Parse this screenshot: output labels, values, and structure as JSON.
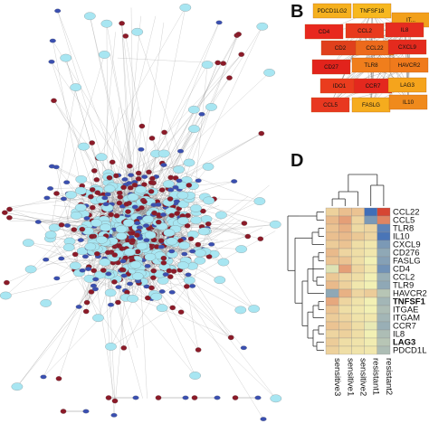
{
  "panels": {
    "B": "B",
    "D": "D"
  },
  "hub_genes": [
    {
      "label": "PDCD1LG2",
      "color": "#f5b01e"
    },
    {
      "label": "TNFSF18",
      "color": "#f7b81f"
    },
    {
      "label": "IT...",
      "color": "#f2a01c"
    },
    {
      "label": "CD4",
      "color": "#e8281e"
    },
    {
      "label": "CCL2",
      "color": "#e83a1e"
    },
    {
      "label": "IL8",
      "color": "#e62c20"
    },
    {
      "label": "CD2",
      "color": "#e0401c"
    },
    {
      "label": "CCL22",
      "color": "#ec6a1c"
    },
    {
      "label": "CXCL9",
      "color": "#e42a1e"
    },
    {
      "label": "CD27",
      "color": "#e2231c"
    },
    {
      "label": "TLR8",
      "color": "#f07e1c"
    },
    {
      "label": "HAVCR2",
      "color": "#f07a1c"
    },
    {
      "label": "IDO1",
      "color": "#ea3c1e"
    },
    {
      "label": "CCR7",
      "color": "#e4281e"
    },
    {
      "label": "LAG3",
      "color": "#f5a41c"
    },
    {
      "label": "CCL5",
      "color": "#e83820"
    },
    {
      "label": "FASLG",
      "color": "#f5ac1e"
    },
    {
      "label": "IL10",
      "color": "#f08a1c"
    }
  ],
  "heatmap": {
    "samples": [
      "sensitive3",
      "sensitive1",
      "sensitive2",
      "resistant1",
      "resistant2"
    ],
    "genes": [
      {
        "name": "CCL22",
        "values": [
          0.35,
          0.55,
          0.5,
          -1.8,
          1.9
        ]
      },
      {
        "name": "CCL5",
        "values": [
          0.6,
          0.9,
          0.3,
          -1.2,
          1.2
        ]
      },
      {
        "name": "TLR8",
        "values": [
          0.5,
          0.7,
          0.25,
          0.3,
          -1.5
        ]
      },
      {
        "name": "IL10",
        "values": [
          0.55,
          0.6,
          0.45,
          0.3,
          -1.7
        ]
      },
      {
        "name": "CXCL9",
        "values": [
          0.4,
          0.5,
          0.2,
          0.1,
          -1.2
        ]
      },
      {
        "name": "CD276",
        "values": [
          0.6,
          0.3,
          0.2,
          0.1,
          -1.0
        ]
      },
      {
        "name": "FASLG",
        "values": [
          0.5,
          0.5,
          0.2,
          0.0,
          -1.1
        ]
      },
      {
        "name": "CD4",
        "values": [
          -0.2,
          0.9,
          0.3,
          0.1,
          -1.3
        ]
      },
      {
        "name": "CCL2",
        "values": [
          0.45,
          0.3,
          0.2,
          0.0,
          -0.9
        ]
      },
      {
        "name": "TLR9",
        "values": [
          0.6,
          0.35,
          0.1,
          0.0,
          -1.0
        ]
      },
      {
        "name": "HAVCR2",
        "values": [
          -1.0,
          0.7,
          0.3,
          0.4,
          -0.6
        ]
      },
      {
        "name": "TNFSF1",
        "values": [
          0.8,
          0.3,
          0.15,
          0.0,
          -0.8
        ]
      },
      {
        "name": "ITGAE",
        "values": [
          0.5,
          0.2,
          0.1,
          0.0,
          -0.7
        ]
      },
      {
        "name": "ITGAM",
        "values": [
          0.4,
          0.3,
          0.15,
          0.1,
          -0.8
        ]
      },
      {
        "name": "CCR7",
        "values": [
          0.5,
          0.4,
          0.2,
          -0.1,
          -0.9
        ]
      },
      {
        "name": "IL8",
        "values": [
          0.3,
          0.35,
          0.2,
          0.0,
          -0.7
        ]
      },
      {
        "name": "LAG3",
        "values": [
          0.4,
          0.2,
          0.15,
          0.05,
          -0.6
        ]
      },
      {
        "name": "PDCD1L",
        "values": [
          0.35,
          0.2,
          0.15,
          0.1,
          -0.7
        ]
      }
    ]
  },
  "colors": {
    "node_red": "#8b1a28",
    "node_blue": "#3a4fb0",
    "node_cyan": "#a8e6f2",
    "edge": "#8a8a8a",
    "heat_low": "#2c5fb8",
    "heat_mid": "#f2f0b4",
    "heat_high": "#d43c2c"
  }
}
